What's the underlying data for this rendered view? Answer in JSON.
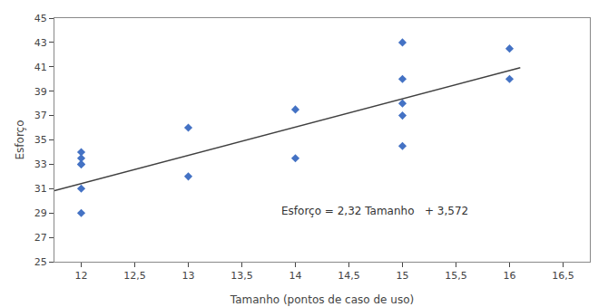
{
  "chart_data": {
    "type": "scatter",
    "xlabel": "Tamanho (pontos de caso de uso)",
    "ylabel": "Esforço",
    "grid": false,
    "xlim": [
      11.75,
      16.75
    ],
    "ylim": [
      25,
      45
    ],
    "xticks": [
      12,
      {
        "value": 12.5,
        "label": "12,5"
      },
      13,
      {
        "value": 13.5,
        "label": "13,5"
      },
      14,
      {
        "value": 14.5,
        "label": "14,5"
      },
      15,
      {
        "value": 15.5,
        "label": "15,5"
      },
      16,
      {
        "value": 16.5,
        "label": "16,5"
      }
    ],
    "yticks": [
      25,
      27,
      29,
      31,
      33,
      35,
      37,
      39,
      41,
      43,
      45
    ],
    "series": [
      {
        "type": "scatter",
        "color": "#4472C4",
        "marker": "diamond",
        "x": [
          12,
          12,
          12,
          12,
          12,
          12,
          13,
          13,
          14,
          14,
          15,
          15,
          15,
          15,
          15,
          16,
          16
        ],
        "values": [
          29,
          31,
          33,
          33,
          33.5,
          34,
          32,
          36,
          33.5,
          37.5,
          34.5,
          37,
          38,
          40,
          43,
          40,
          42.5
        ]
      },
      {
        "type": "line",
        "color": "#404040",
        "line_style": "solid",
        "x": [
          11.75,
          16.1
        ],
        "values": [
          30.832,
          40.924
        ]
      }
    ],
    "annotations": [
      {
        "text": "Esforço = 2,32 Tamanho   + 3,572",
        "x": 13.85,
        "y": 28.5
      }
    ]
  }
}
